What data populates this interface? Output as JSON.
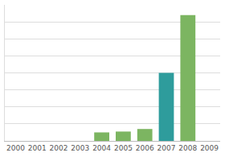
{
  "chart_data": {
    "type": "bar",
    "categories": [
      "2000",
      "2001",
      "2002",
      "2003",
      "2004",
      "2005",
      "2006",
      "2007",
      "2008",
      "2009"
    ],
    "values": [
      0,
      0,
      0,
      0,
      0.5,
      0.55,
      0.7,
      4.0,
      7.4,
      0
    ],
    "colors": [
      "#7cb561",
      "#7cb561",
      "#7cb561",
      "#7cb561",
      "#7cb561",
      "#7cb561",
      "#7cb561",
      "#2e9c9c",
      "#7cb561",
      "#7cb561"
    ],
    "ylim": [
      0,
      8
    ],
    "yticks": [
      0,
      1,
      2,
      3,
      4,
      5,
      6,
      7,
      8
    ],
    "grid": true,
    "tick_labels": "x"
  }
}
